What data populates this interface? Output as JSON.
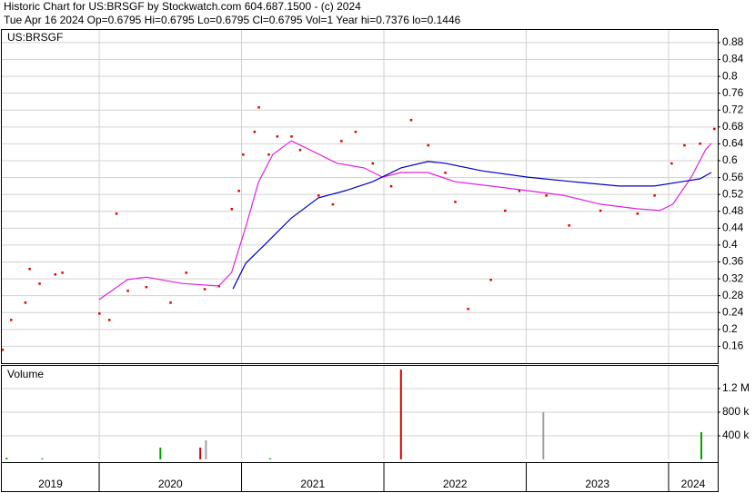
{
  "chart_data": [
    {
      "type": "line",
      "title": "Historic Chart for US:BRSGF by Stockwatch.com 604.687.1500 - (c) 2024",
      "subtitle": "Tue Apr 16 2024  Op=0.6795  Hi=0.6795  Lo=0.6795  Cl=0.6795  Vol=1  Year hi=0.7376  lo=0.1446",
      "label": "US:BRSGF",
      "xlim": [
        2019.316,
        2024.345
      ],
      "xticks": [
        2020,
        2021,
        2022,
        2023,
        2024
      ],
      "ylim": [
        0.12,
        0.91
      ],
      "yticks": [
        0.16,
        0.2,
        0.24,
        0.28,
        0.32,
        0.36,
        0.4,
        0.44,
        0.48,
        0.52,
        0.56,
        0.6,
        0.64,
        0.68,
        0.72,
        0.76,
        0.8,
        0.84,
        0.88
      ],
      "grid": true,
      "series": [
        {
          "color": "#dd0000",
          "marker": "dot",
          "x": [
            2019.32,
            2019.38,
            2019.48,
            2019.51,
            2019.58,
            2019.69,
            2019.74,
            2020.0,
            2020.07,
            2020.12,
            2020.2,
            2020.33,
            2020.5,
            2020.61,
            2020.74,
            2020.84,
            2020.93,
            2020.98,
            2021.01,
            2021.09,
            2021.12,
            2021.19,
            2021.25,
            2021.35,
            2021.41,
            2021.54,
            2021.64,
            2021.7,
            2021.8,
            2021.92,
            2022.05,
            2022.19,
            2022.31,
            2022.43,
            2022.5,
            2022.59,
            2022.75,
            2022.85,
            2022.95,
            2023.14,
            2023.3,
            2023.52,
            2023.78,
            2023.9,
            2024.02,
            2024.11,
            2024.22,
            2024.32
          ],
          "values": [
            0.152,
            0.223,
            0.264,
            0.344,
            0.309,
            0.331,
            0.335,
            0.238,
            0.223,
            0.475,
            0.292,
            0.301,
            0.264,
            0.335,
            0.296,
            0.303,
            0.486,
            0.529,
            0.615,
            0.669,
            0.727,
            0.615,
            0.658,
            0.658,
            0.626,
            0.518,
            0.497,
            0.647,
            0.669,
            0.594,
            0.54,
            0.697,
            0.637,
            0.572,
            0.503,
            0.249,
            0.318,
            0.482,
            0.529,
            0.518,
            0.447,
            0.482,
            0.475,
            0.518,
            0.594,
            0.637,
            0.641,
            0.676
          ]
        },
        {
          "color": "#e020e0",
          "marker": "none",
          "x": [
            2020.0,
            2020.2,
            2020.33,
            2020.58,
            2020.84,
            2020.93,
            2021.03,
            2021.12,
            2021.22,
            2021.35,
            2021.48,
            2021.67,
            2021.86,
            2021.99,
            2022.12,
            2022.31,
            2022.5,
            2022.75,
            2023.01,
            2023.26,
            2023.52,
            2023.78,
            2023.94,
            2024.03,
            2024.16,
            2024.26,
            2024.3
          ],
          "values": [
            0.271,
            0.318,
            0.324,
            0.309,
            0.303,
            0.335,
            0.443,
            0.55,
            0.615,
            0.647,
            0.626,
            0.594,
            0.583,
            0.561,
            0.572,
            0.572,
            0.55,
            0.54,
            0.529,
            0.518,
            0.497,
            0.486,
            0.482,
            0.497,
            0.561,
            0.626,
            0.641
          ]
        },
        {
          "color": "#0000c0",
          "marker": "none",
          "x": [
            2020.94,
            2021.03,
            2021.16,
            2021.35,
            2021.54,
            2021.73,
            2021.92,
            2022.12,
            2022.31,
            2022.43,
            2022.69,
            2023.01,
            2023.33,
            2023.65,
            2023.9,
            2024.09,
            2024.22,
            2024.3
          ],
          "values": [
            0.296,
            0.357,
            0.4,
            0.464,
            0.512,
            0.529,
            0.55,
            0.583,
            0.598,
            0.594,
            0.576,
            0.561,
            0.55,
            0.54,
            0.54,
            0.55,
            0.557,
            0.572
          ]
        }
      ]
    },
    {
      "type": "bar",
      "label": "Volume",
      "xlim": [
        2019.316,
        2024.345
      ],
      "xticks": [
        2020,
        2021,
        2022,
        2023,
        2024
      ],
      "year_labels": [
        "2019",
        "2020",
        "2021",
        "2022",
        "2023",
        "2024"
      ],
      "ylim": [
        0,
        1600000
      ],
      "yticks": [
        {
          "value": 400000,
          "label": "400 k"
        },
        {
          "value": 800000,
          "label": "800 k"
        },
        {
          "value": 1200000,
          "label": "1.2 M"
        }
      ],
      "x": [
        2019.35,
        2019.6,
        2020.43,
        2020.71,
        2020.75,
        2021.2,
        2022.12,
        2023.12,
        2024.23
      ],
      "values": [
        30000,
        20000,
        200000,
        200000,
        323000,
        20000,
        1523000,
        800000,
        461000
      ],
      "colors": [
        "#00a000",
        "#00a000",
        "#00a000",
        "#dd0000",
        "#a0a0a0",
        "#00a000",
        "#dd0000",
        "#a0a0a0",
        "#00a000"
      ]
    }
  ]
}
